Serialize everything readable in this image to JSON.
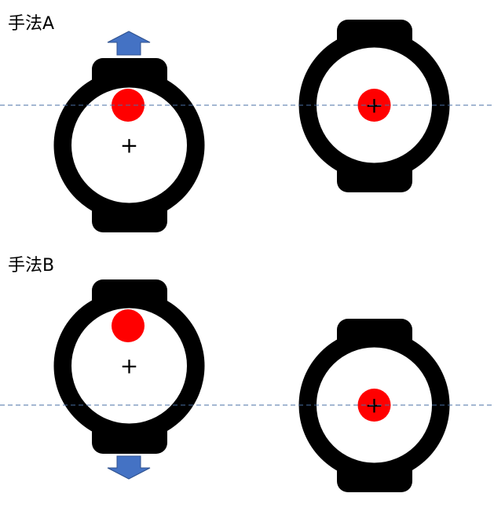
{
  "labels": {
    "method_a": "手法A",
    "method_b": "手法B"
  },
  "colors": {
    "watch_body": "#000000",
    "watch_face": "#ffffff",
    "dot": "#ff0000",
    "arrow_fill": "#4472c4",
    "arrow_stroke": "#2f528f",
    "guide_line": "#4a6fa5"
  },
  "icons": {
    "arrow_up": "up-arrow-icon",
    "arrow_down": "down-arrow-icon",
    "center_mark": "plus-icon"
  },
  "center_mark_glyph": "+"
}
